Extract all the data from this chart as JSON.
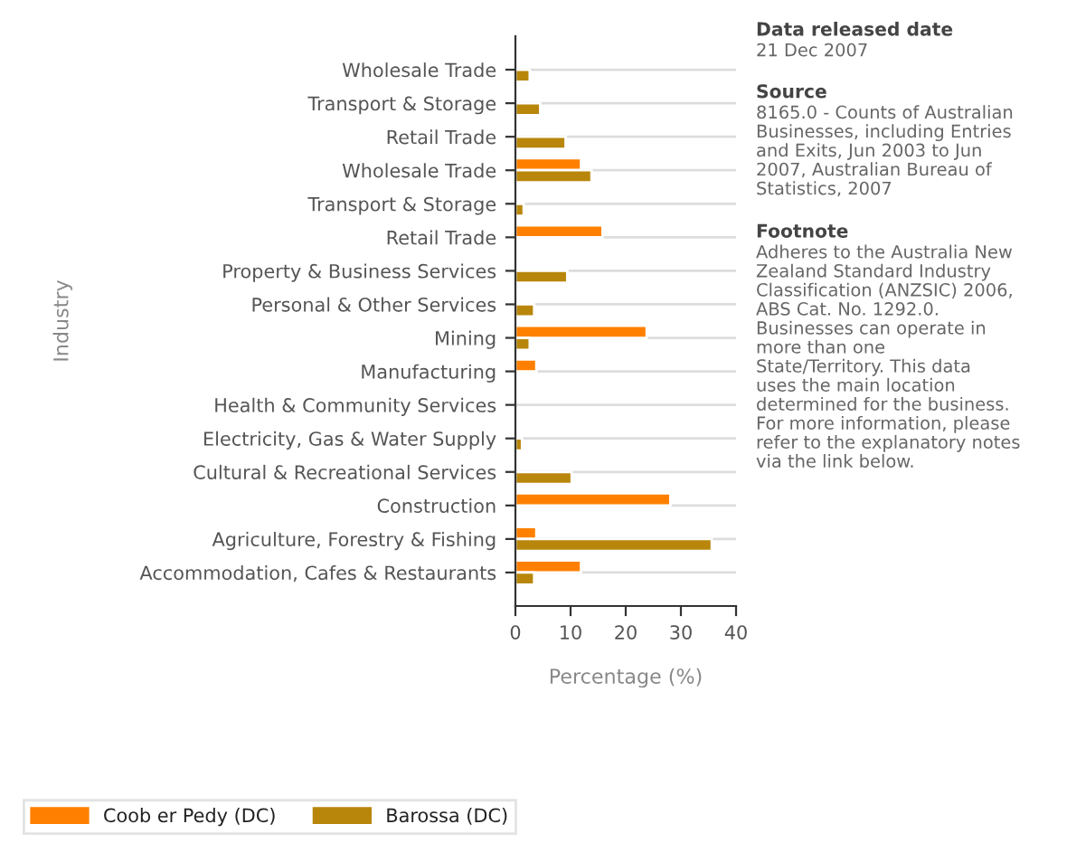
{
  "chart_data": {
    "type": "bar",
    "orientation": "horizontal",
    "ylabel": "Industry",
    "xlabel": "Percentage (%)",
    "categories": [
      "Wholesale Trade",
      "Transport & Storage",
      "Retail Trade",
      "Wholesale Trade",
      "Transport & Storage",
      "Retail Trade",
      "Property & Business Services",
      "Personal & Other Services",
      "Mining",
      "Manufacturing",
      "Health & Community Services",
      "Electricity, Gas & Water Supply",
      "Cultural & Recreational Services",
      "Construction",
      "Agriculture, Forestry & Fishing",
      "Accommodation, Cafes & Restaurants"
    ],
    "series": [
      {
        "name": "Coob er Pedy (DC)",
        "color": "#ff8000",
        "values": [
          null,
          null,
          null,
          11.9,
          null,
          15.8,
          null,
          null,
          23.8,
          3.8,
          null,
          null,
          null,
          28.1,
          3.8,
          11.9
        ]
      },
      {
        "name": "Barossa (DC)",
        "color": "#b8860b",
        "values": [
          2.6,
          4.5,
          9.1,
          13.8,
          1.5,
          null,
          9.4,
          3.4,
          2.6,
          null,
          null,
          1.2,
          10.2,
          null,
          35.6,
          3.4
        ]
      }
    ],
    "xlim": [
      0,
      40
    ],
    "xticks": [
      0,
      10,
      20,
      30,
      40
    ],
    "grid": "y",
    "legend": "bottom left",
    "annotations": [
      "Data released date",
      "21 Dec 2007",
      "Source",
      "8165.0 - Counts of Australian\nBusinesses, including Entries\nand Exits, Jun 2003 to Jun\n2007, Australian Bureau of\nStatistics, 2007",
      "Footnote",
      "Adheres to the Australia New\nZealand Standard Industry\nClassification (ANZSIC) 2006,\nABS Cat. No. 1292.0.\nBusinesses can operate in\nmore than one\nState/Territory. This data\nuses the main location\ndetermined for the business.\nFor more information, please\nrefer to the explanatory notes\nvia the link below."
    ]
  }
}
